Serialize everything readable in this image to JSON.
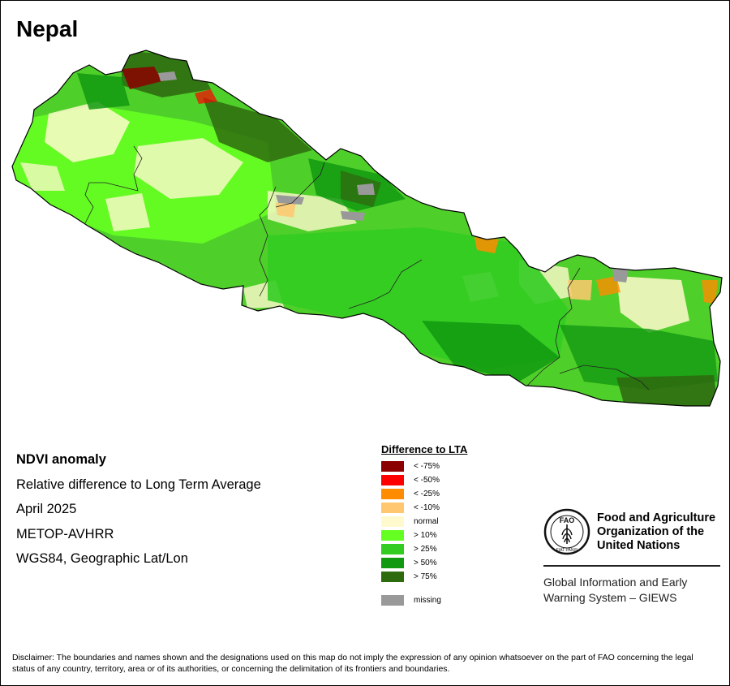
{
  "title": "Nepal",
  "info": {
    "heading": "NDVI anomaly",
    "line1": "Relative difference to Long Term Average",
    "line2": "April 2025",
    "line3": "METOP-AVHRR",
    "line4": "WGS84, Geographic Lat/Lon"
  },
  "legend": {
    "title": "Difference to LTA",
    "items": [
      {
        "label": "< -75%",
        "color": "#8b0000"
      },
      {
        "label": "< -50%",
        "color": "#ff0000"
      },
      {
        "label": "< -25%",
        "color": "#ff8c00"
      },
      {
        "label": "< -10%",
        "color": "#ffc870"
      },
      {
        "label": "normal",
        "color": "#fffacd"
      },
      {
        "label": "> 10%",
        "color": "#66ff22"
      },
      {
        "label": "> 25%",
        "color": "#33cc22"
      },
      {
        "label": "> 50%",
        "color": "#119911"
      },
      {
        "label": "> 75%",
        "color": "#2e6b0f"
      }
    ],
    "missing": {
      "label": "missing",
      "color": "#999999"
    }
  },
  "logo": {
    "emblem_text": "FAO",
    "emblem_motto": "FIAT PANIS",
    "name_line1": "Food and Agriculture",
    "name_line2": "Organization of the",
    "name_line3": "United Nations"
  },
  "giews": {
    "line1": "Global Information and Early",
    "line2": "Warning System – GIEWS"
  },
  "disclaimer": "Disclaimer: The boundaries and names shown and the designations used on this map do not imply the expression of any opinion whatsoever on the part of FAO concerning the legal status of any country, territory, area or of its authorities, or concerning the delimitation of its frontiers and boundaries.",
  "map_colors": {
    "country_fill": "#4fcf2a",
    "border": "#000000",
    "internal_border": "#222222"
  }
}
